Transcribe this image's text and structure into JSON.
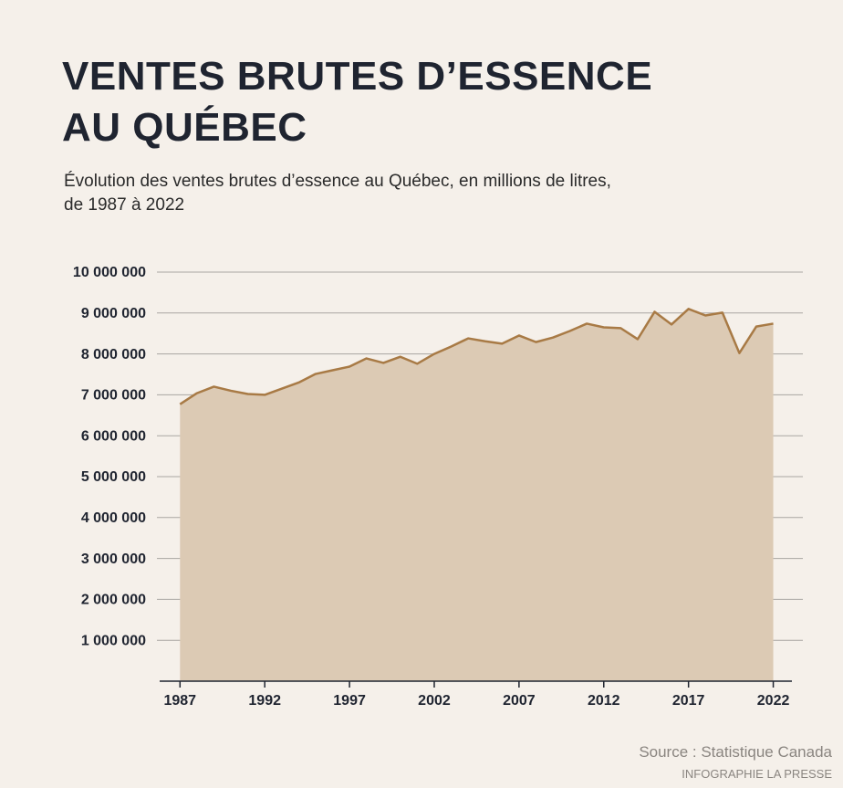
{
  "chart_data": {
    "type": "area",
    "title": "VENTES BRUTES D’ESSENCE\nAU QUÉBEC",
    "subtitle": "Évolution des ventes brutes d’essence au Québec, en millions de litres,\nde 1987 à 2022",
    "source": "Source : Statistique Canada",
    "credit": "INFOGRAPHIE LA PRESSE",
    "x": [
      1987,
      1988,
      1989,
      1990,
      1991,
      1992,
      1993,
      1994,
      1995,
      1996,
      1997,
      1998,
      1999,
      2000,
      2001,
      2002,
      2003,
      2004,
      2005,
      2006,
      2007,
      2008,
      2009,
      2010,
      2011,
      2012,
      2013,
      2014,
      2015,
      2016,
      2017,
      2018,
      2019,
      2020,
      2021,
      2022
    ],
    "values": [
      6770000,
      7040000,
      7200000,
      7100000,
      7020000,
      7000000,
      7150000,
      7300000,
      7510000,
      7600000,
      7690000,
      7890000,
      7780000,
      7930000,
      7760000,
      8000000,
      8180000,
      8380000,
      8310000,
      8250000,
      8450000,
      8290000,
      8400000,
      8560000,
      8740000,
      8650000,
      8630000,
      8360000,
      9030000,
      8720000,
      9100000,
      8940000,
      9010000,
      8020000,
      8670000,
      8740000
    ],
    "color": "#a87a45",
    "fill": "#dccab4",
    "xlim": [
      1985.8,
      2023.1
    ],
    "xticks": [
      1987,
      1992,
      1997,
      2002,
      2007,
      2012,
      2017,
      2022
    ],
    "ylim": [
      0,
      10000000
    ],
    "yticks": [
      {
        "value": 1000000,
        "label": "1 000 000"
      },
      {
        "value": 2000000,
        "label": "2 000 000"
      },
      {
        "value": 3000000,
        "label": "3 000 000"
      },
      {
        "value": 4000000,
        "label": "4 000 000"
      },
      {
        "value": 5000000,
        "label": "5 000 000"
      },
      {
        "value": 6000000,
        "label": "6 000 000"
      },
      {
        "value": 7000000,
        "label": "7 000 000"
      },
      {
        "value": 8000000,
        "label": "8 000 000"
      },
      {
        "value": 9000000,
        "label": "9 000 000"
      },
      {
        "value": 10000000,
        "label": "10 000 000"
      }
    ],
    "grid": true
  }
}
